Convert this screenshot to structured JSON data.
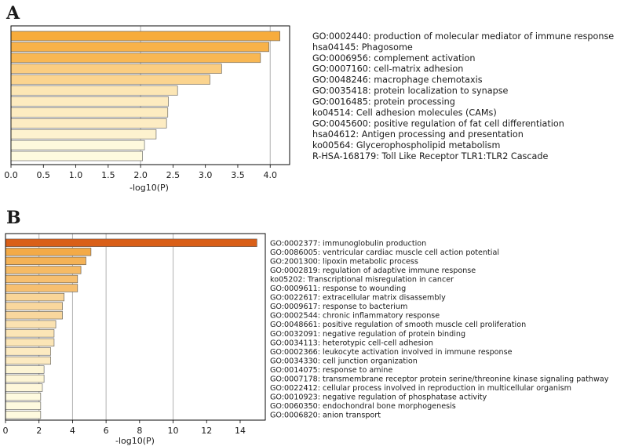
{
  "chart_data": [
    {
      "type": "bar",
      "orientation": "horizontal",
      "panel_label": "A",
      "xlabel": "-log10(P)",
      "xlim": [
        0,
        4.3
      ],
      "xticks": [
        "0.0",
        "0.5",
        "1.0",
        "1.5",
        "2.0",
        "2.5",
        "3.0",
        "3.5",
        "4.0"
      ],
      "grid_x": [
        2.0,
        4.0
      ],
      "colors": {
        "high": "#f7ac3c",
        "low": "#fefadf",
        "edge": "#555555"
      },
      "categories": [
        "GO:0002440: production of molecular mediator of immune response",
        "hsa04145: Phagosome",
        "GO:0006956: complement activation",
        "GO:0007160: cell-matrix adhesion",
        "GO:0048246: macrophage chemotaxis",
        "GO:0035418: protein localization to synapse",
        "GO:0016485: protein processing",
        "ko04514: Cell adhesion molecules (CAMs)",
        "GO:0045600: positive regulation of fat cell differentiation",
        "hsa04612: Antigen processing and presentation",
        "ko00564: Glycerophospholipid metabolism",
        "R-HSA-168179: Toll Like Receptor TLR1:TLR2 Cascade"
      ],
      "values": [
        4.15,
        3.98,
        3.85,
        3.25,
        3.07,
        2.57,
        2.43,
        2.42,
        2.4,
        2.24,
        2.06,
        2.03
      ]
    },
    {
      "type": "bar",
      "orientation": "horizontal",
      "panel_label": "B",
      "xlabel": "-log10(P)",
      "xlim": [
        0,
        15.5
      ],
      "xticks": [
        "0",
        "2",
        "4",
        "6",
        "8",
        "10",
        "12",
        "14"
      ],
      "grid_x": [
        2,
        4,
        6,
        10
      ],
      "colors": {
        "high": "#d95f18",
        "mid": "#f3a742",
        "low": "#fefadf",
        "edge": "#555555"
      },
      "categories": [
        "GO:0002377: immunoglobulin production",
        "GO:0086005: ventricular cardiac muscle cell action potential",
        "GO:2001300: lipoxin metabolic process",
        "GO:0002819: regulation of adaptive immune response",
        "ko05202: Transcriptional misregulation in cancer",
        "GO:0009611: response to wounding",
        "GO:0022617: extracellular matrix disassembly",
        "GO:0009617: response to bacterium",
        "GO:0002544: chronic inflammatory response",
        "GO:0048661: positive regulation of smooth muscle cell proliferation",
        "GO:0032091: negative regulation of protein binding",
        "GO:0034113: heterotypic cell-cell adhesion",
        "GO:0002366: leukocyte activation involved in immune response",
        "GO:0034330: cell junction organization",
        "GO:0014075: response to amine",
        "GO:0007178: transmembrane receptor protein serine/threonine kinase signaling pathway",
        "GO:0022412: cellular process involved in reproduction in multicellular organism",
        "GO:0010923: negative regulation of phosphatase activity",
        "GO:0060350: endochondral bone morphogenesis",
        "GO:0006820: anion transport"
      ],
      "values": [
        15.0,
        5.1,
        4.8,
        4.5,
        4.3,
        4.3,
        3.5,
        3.4,
        3.4,
        3.0,
        2.9,
        2.9,
        2.7,
        2.7,
        2.3,
        2.3,
        2.2,
        2.1,
        2.1,
        2.1
      ]
    }
  ]
}
